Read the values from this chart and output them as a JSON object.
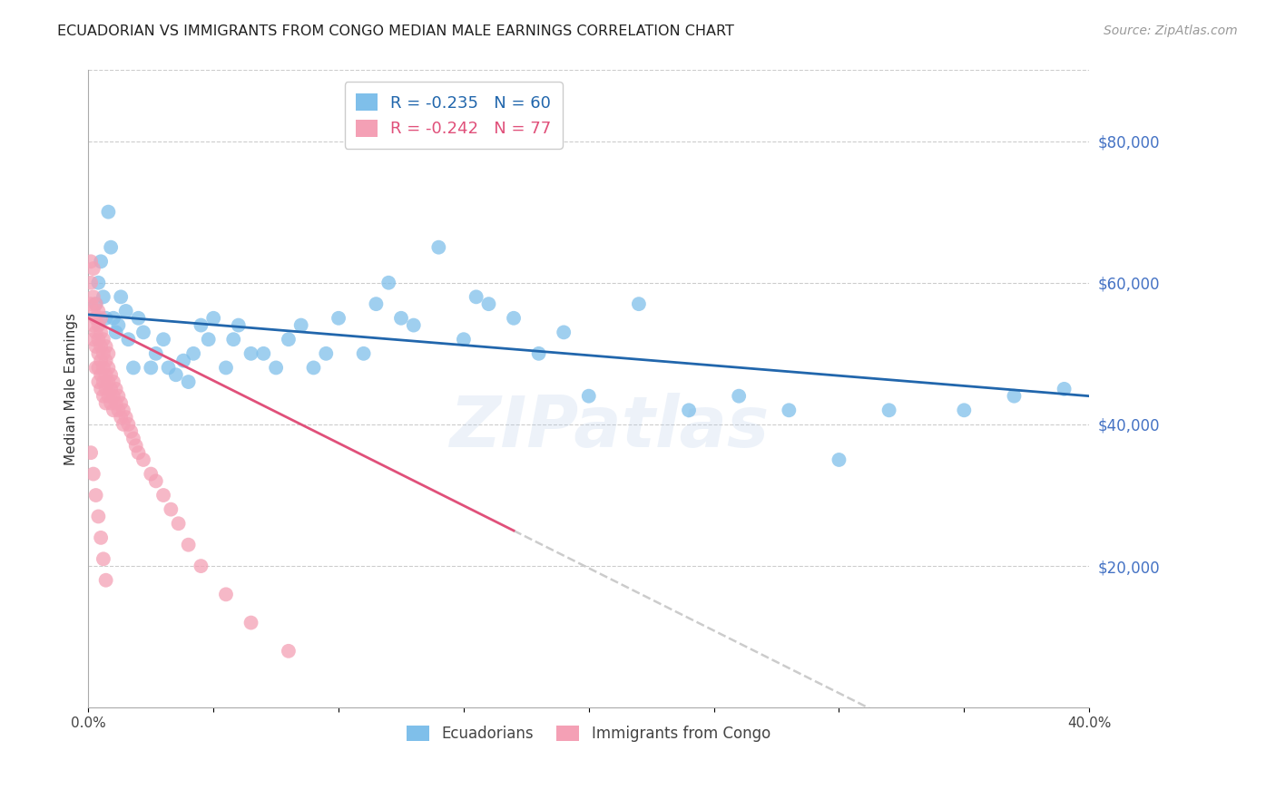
{
  "title": "ECUADORIAN VS IMMIGRANTS FROM CONGO MEDIAN MALE EARNINGS CORRELATION CHART",
  "source": "Source: ZipAtlas.com",
  "ylabel": "Median Male Earnings",
  "right_yticks": [
    20000,
    40000,
    60000,
    80000
  ],
  "right_ytick_labels": [
    "$20,000",
    "$40,000",
    "$60,000",
    "$80,000"
  ],
  "xlim": [
    0.0,
    0.4
  ],
  "ylim": [
    0,
    90000
  ],
  "blue_color": "#7fbfea",
  "pink_color": "#f4a0b5",
  "blue_line_color": "#2166ac",
  "pink_line_color": "#e0507a",
  "dashed_line_color": "#cccccc",
  "legend_blue_label": "Ecuadorians",
  "legend_pink_label": "Immigrants from Congo",
  "legend_blue_r": "R = -0.235",
  "legend_blue_n": "N = 60",
  "legend_pink_r": "R = -0.242",
  "legend_pink_n": "N = 77",
  "watermark": "ZIPatlas",
  "blue_x": [
    0.003,
    0.004,
    0.005,
    0.006,
    0.007,
    0.008,
    0.009,
    0.01,
    0.011,
    0.012,
    0.013,
    0.015,
    0.016,
    0.018,
    0.02,
    0.022,
    0.025,
    0.027,
    0.03,
    0.032,
    0.035,
    0.038,
    0.04,
    0.042,
    0.045,
    0.048,
    0.05,
    0.055,
    0.058,
    0.06,
    0.065,
    0.07,
    0.075,
    0.08,
    0.085,
    0.09,
    0.095,
    0.1,
    0.11,
    0.115,
    0.12,
    0.125,
    0.13,
    0.14,
    0.15,
    0.155,
    0.16,
    0.17,
    0.18,
    0.19,
    0.2,
    0.22,
    0.24,
    0.26,
    0.28,
    0.3,
    0.32,
    0.35,
    0.37,
    0.39
  ],
  "blue_y": [
    57000,
    60000,
    63000,
    58000,
    55000,
    70000,
    65000,
    55000,
    53000,
    54000,
    58000,
    56000,
    52000,
    48000,
    55000,
    53000,
    48000,
    50000,
    52000,
    48000,
    47000,
    49000,
    46000,
    50000,
    54000,
    52000,
    55000,
    48000,
    52000,
    54000,
    50000,
    50000,
    48000,
    52000,
    54000,
    48000,
    50000,
    55000,
    50000,
    57000,
    60000,
    55000,
    54000,
    65000,
    52000,
    58000,
    57000,
    55000,
    50000,
    53000,
    44000,
    57000,
    42000,
    44000,
    42000,
    35000,
    42000,
    42000,
    44000,
    45000
  ],
  "pink_x": [
    0.001,
    0.001,
    0.001,
    0.002,
    0.002,
    0.002,
    0.002,
    0.002,
    0.003,
    0.003,
    0.003,
    0.003,
    0.003,
    0.004,
    0.004,
    0.004,
    0.004,
    0.004,
    0.004,
    0.005,
    0.005,
    0.005,
    0.005,
    0.005,
    0.005,
    0.006,
    0.006,
    0.006,
    0.006,
    0.006,
    0.007,
    0.007,
    0.007,
    0.007,
    0.007,
    0.008,
    0.008,
    0.008,
    0.008,
    0.009,
    0.009,
    0.009,
    0.01,
    0.01,
    0.01,
    0.011,
    0.011,
    0.012,
    0.012,
    0.013,
    0.013,
    0.014,
    0.014,
    0.015,
    0.016,
    0.017,
    0.018,
    0.019,
    0.02,
    0.022,
    0.025,
    0.027,
    0.03,
    0.033,
    0.036,
    0.04,
    0.045,
    0.055,
    0.065,
    0.08,
    0.001,
    0.002,
    0.003,
    0.004,
    0.005,
    0.006,
    0.007
  ],
  "pink_y": [
    63000,
    60000,
    57000,
    62000,
    58000,
    56000,
    54000,
    52000,
    57000,
    55000,
    53000,
    51000,
    48000,
    56000,
    54000,
    52000,
    50000,
    48000,
    46000,
    55000,
    53000,
    51000,
    49000,
    47000,
    45000,
    52000,
    50000,
    48000,
    46000,
    44000,
    51000,
    49000,
    47000,
    45000,
    43000,
    50000,
    48000,
    46000,
    44000,
    47000,
    45000,
    43000,
    46000,
    44000,
    42000,
    45000,
    43000,
    44000,
    42000,
    43000,
    41000,
    42000,
    40000,
    41000,
    40000,
    39000,
    38000,
    37000,
    36000,
    35000,
    33000,
    32000,
    30000,
    28000,
    26000,
    23000,
    20000,
    16000,
    12000,
    8000,
    36000,
    33000,
    30000,
    27000,
    24000,
    21000,
    18000
  ]
}
